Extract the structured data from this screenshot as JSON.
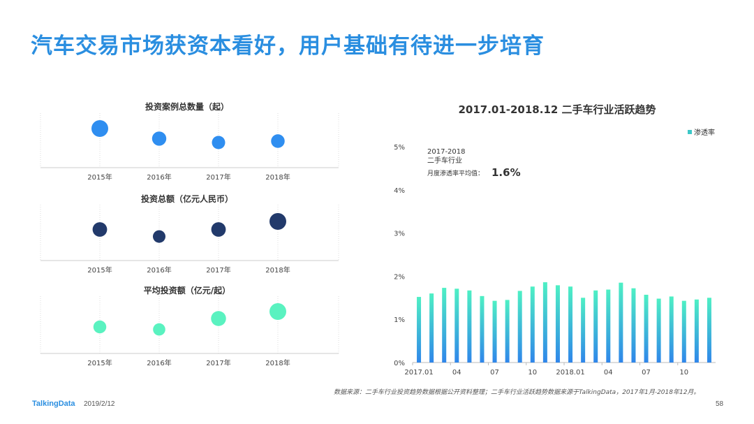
{
  "title": "汽车交易市场获资本看好，用户基础有待进一步培育",
  "colors": {
    "title": "#2a8ee0",
    "bubble_count": "#2f8ef0",
    "bubble_amount": "#223a6b",
    "bubble_avg": "#5af2c0",
    "bar_top": "#4ef0c4",
    "bar_bottom": "#2f86ea"
  },
  "chart_data": [
    {
      "type": "scatter",
      "title": "投资案例总数量（起）",
      "categories": [
        "2015年",
        "2016年",
        "2017年",
        "2018年"
      ],
      "values": [
        1.0,
        0.64,
        0.5,
        0.55
      ],
      "color": "#2f8ef0"
    },
    {
      "type": "scatter",
      "title": "投资总额（亿元人民币）",
      "categories": [
        "2015年",
        "2016年",
        "2017年",
        "2018年"
      ],
      "values": [
        0.68,
        0.4,
        0.68,
        1.0
      ],
      "color": "#223a6b"
    },
    {
      "type": "scatter",
      "title": "平均投资额（亿元/起）",
      "categories": [
        "2015年",
        "2016年",
        "2017年",
        "2018年"
      ],
      "values": [
        0.45,
        0.36,
        0.75,
        1.0
      ],
      "color": "#5af2c0"
    },
    {
      "type": "bar",
      "title": "2017.01-2018.12  二手车行业活跃趋势",
      "series": [
        {
          "name": "渗透率",
          "values": [
            1.52,
            1.6,
            1.73,
            1.71,
            1.67,
            1.54,
            1.43,
            1.45,
            1.66,
            1.76,
            1.86,
            1.79,
            1.76,
            1.5,
            1.67,
            1.69,
            1.85,
            1.72,
            1.57,
            1.48,
            1.53,
            1.43,
            1.46,
            1.5
          ]
        }
      ],
      "ylim": [
        0,
        5
      ],
      "yticks": [
        "0%",
        "1%",
        "2%",
        "3%",
        "4%",
        "5%"
      ],
      "xtick_labels": [
        "2017.01",
        "04",
        "07",
        "10",
        "2018.01",
        "04",
        "07",
        "10"
      ],
      "legend": "top-right",
      "annotation": {
        "line1": "2017-2018",
        "line2": "二手车行业",
        "line3": "月度渗透率平均值：",
        "value": "1.6%"
      }
    }
  ],
  "source": "数据来源：二手车行业投资趋势数据根据公开资料整理；二手车行业活跃趋势数据来源于TalkingData，2017年1月-2018年12月。",
  "footer": {
    "brand": "TalkingData",
    "date": "2019/2/12",
    "page": "58"
  }
}
